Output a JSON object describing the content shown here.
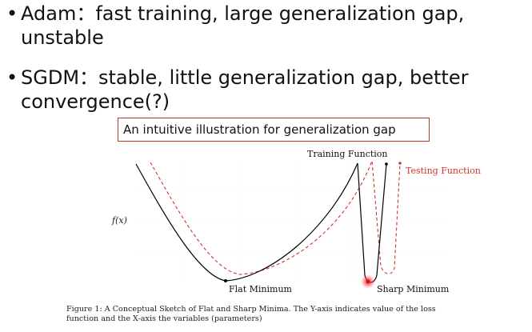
{
  "bullets": [
    {
      "marker": "•",
      "line1": "Adam：fast training, large generalization gap,",
      "line2": "unstable"
    },
    {
      "marker": "•",
      "line1": "SGDM：stable, little generalization gap, better",
      "line2": "convergence(?)"
    }
  ],
  "callout": {
    "text": "An intuitive illustration for generalization gap",
    "border_color": "#c0392b"
  },
  "figure": {
    "y_label": "f(x)",
    "training_label": "Training Function",
    "testing_label": "Testing Function",
    "flat_label": "Flat Minimum",
    "sharp_label": "Sharp Minimum",
    "training_color": "#000000",
    "testing_color": "#d0342c",
    "caption_line1": "Figure 1: A Conceptual Sketch of Flat and Sharp Minima.  The Y-axis indicates value of the loss",
    "caption_line2": "function and the X-axis the variables (parameters)"
  }
}
